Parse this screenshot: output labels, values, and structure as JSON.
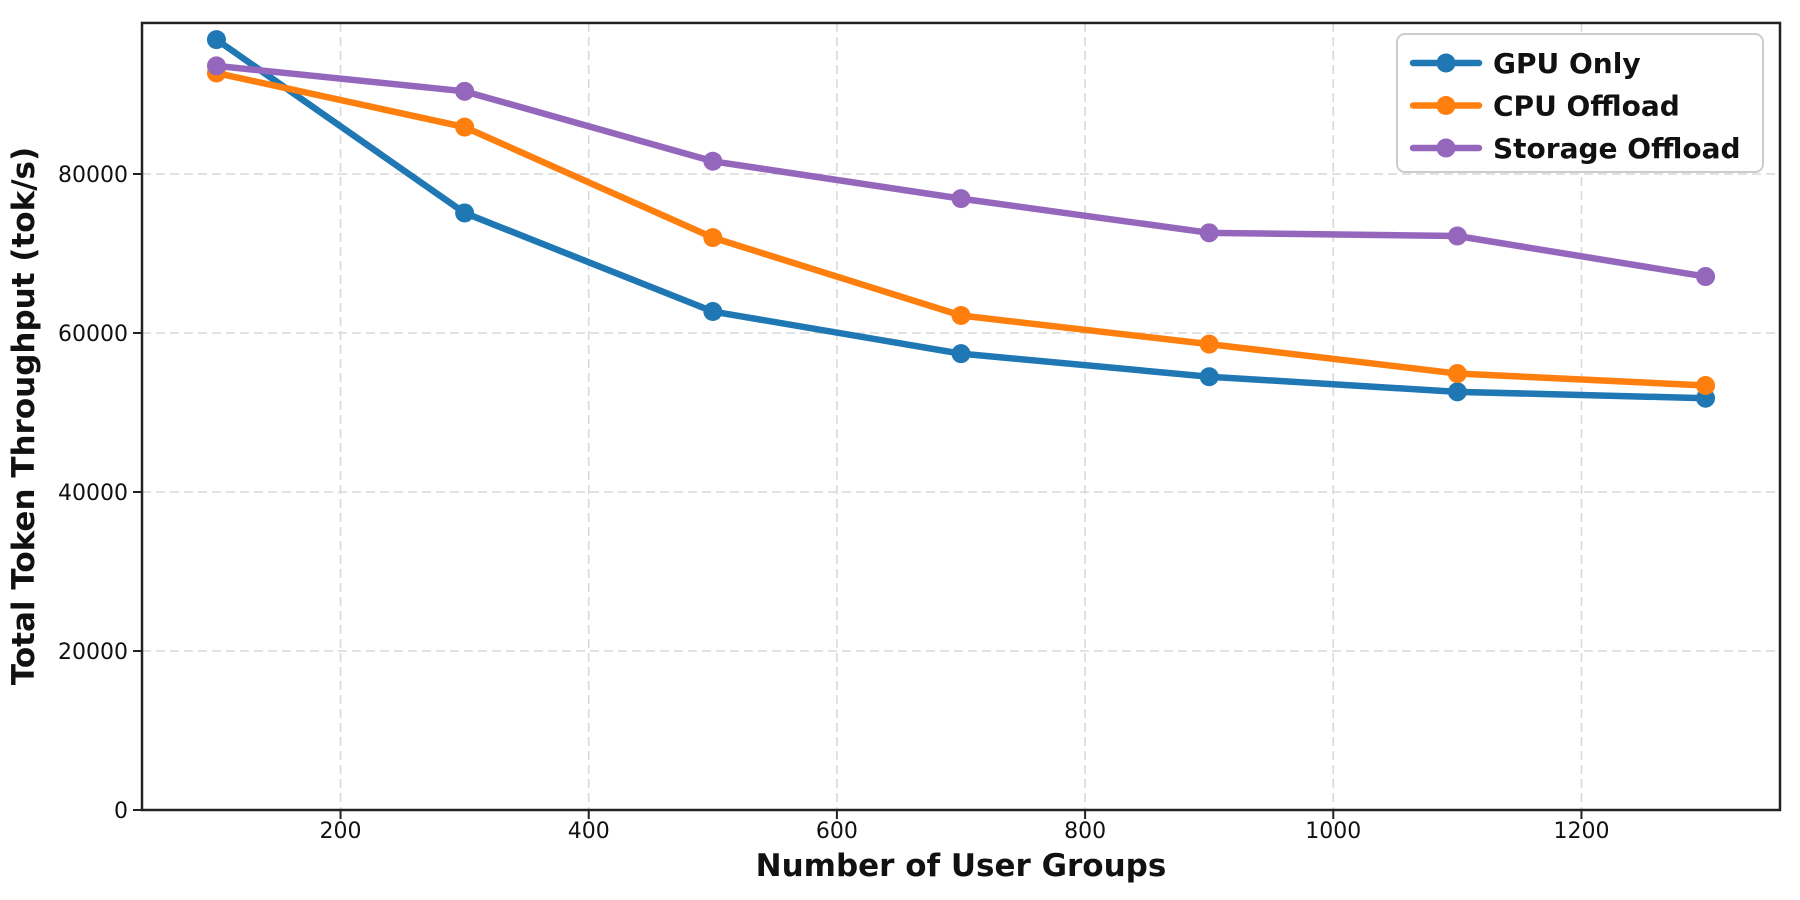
{
  "figure": {
    "background": "#ffffff"
  },
  "chart_data": {
    "type": "line",
    "title": "",
    "xlabel": "Number of User Groups",
    "ylabel": "Total Token Throughput (tok/s)",
    "x": [
      100,
      300,
      500,
      700,
      900,
      1100,
      1300
    ],
    "series": [
      {
        "name": "GPU Only",
        "color": "#1f77b4",
        "values": [
          96900,
          75100,
          62700,
          57400,
          54500,
          52600,
          51800
        ]
      },
      {
        "name": "CPU Offload",
        "color": "#ff7f0e",
        "values": [
          92700,
          85900,
          72000,
          62200,
          58600,
          54900,
          53400
        ]
      },
      {
        "name": "Storage Offload",
        "color": "#9467bd",
        "values": [
          93600,
          90400,
          81600,
          76900,
          72600,
          72200,
          67100
        ]
      }
    ],
    "xticks": [
      200,
      400,
      600,
      800,
      1000,
      1200
    ],
    "yticks": [
      0,
      20000,
      40000,
      60000,
      80000
    ],
    "xlim": [
      40,
      1360
    ],
    "ylim": [
      0,
      99000
    ],
    "grid": true,
    "grid_style": "dashed",
    "legend_position": "upper-right",
    "legend_labels": [
      "GPU Only",
      "CPU Offload",
      "Storage Offload"
    ],
    "marker": "circle",
    "colors": {
      "grid": "#d9d9d9",
      "spine": "#222222",
      "text": "#111111",
      "legend_border": "#cccccc",
      "legend_background": "#ffffff"
    }
  }
}
